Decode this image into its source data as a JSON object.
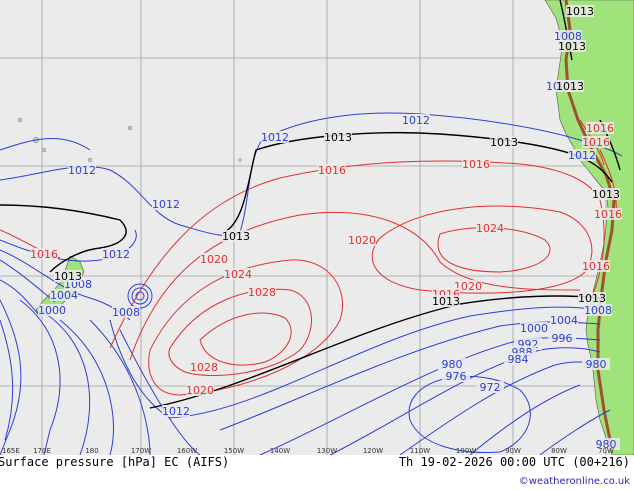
{
  "colors": {
    "ocean": "#ebebeb",
    "land": "#9fe37a",
    "isobar_low": "#2a3fd6",
    "isobar_high": "#e03030",
    "isobar_1013": "#000000",
    "grid": "#a0a0a0"
  },
  "isobar_labels": {
    "blue": [
      "1012",
      "1012",
      "1012",
      "1012",
      "1012",
      "1012",
      "1008",
      "1008",
      "1004",
      "1000",
      "1008",
      "1004",
      "1000",
      "996",
      "992",
      "988",
      "984",
      "980",
      "976",
      "972",
      "980",
      "980",
      "1008",
      "1004",
      "1012"
    ],
    "red": [
      "1016",
      "1016",
      "1016",
      "1016",
      "1020",
      "1020",
      "1024",
      "1028",
      "1028",
      "1020",
      "1024",
      "1020",
      "1016",
      "1016",
      "1016",
      "1016"
    ],
    "black": [
      "1013",
      "1013",
      "1013",
      "1013",
      "1013",
      "1013",
      "1013",
      "1013",
      "1013",
      "1013"
    ]
  },
  "lon_ticks": [
    "165E",
    "170E",
    "180",
    "170W",
    "160W",
    "150W",
    "140W",
    "130W",
    "120W",
    "110W",
    "100W",
    "90W",
    "80W",
    "70W"
  ],
  "footer": {
    "title": "Surface pressure [hPa] EC (AIFS)",
    "datetime": "Th 19-02-2026 00:00 UTC (00+216)",
    "credit": "©weatheronline.co.uk"
  }
}
